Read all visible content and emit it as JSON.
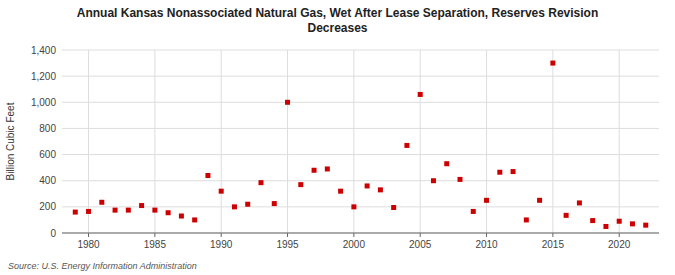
{
  "chart_data": {
    "type": "scatter",
    "title": "Annual Kansas Nonassociated Natural Gas, Wet After Lease Separation, Reserves Revision\nDecreases",
    "ylabel": "Billion Cubic Feet",
    "source": "Source: U.S. Energy Information Administration",
    "x": [
      1979,
      1980,
      1981,
      1982,
      1983,
      1984,
      1985,
      1986,
      1987,
      1988,
      1989,
      1990,
      1991,
      1992,
      1993,
      1994,
      1995,
      1996,
      1997,
      1998,
      1999,
      2000,
      2001,
      2002,
      2003,
      2004,
      2005,
      2006,
      2007,
      2008,
      2009,
      2010,
      2011,
      2012,
      2013,
      2014,
      2015,
      2016,
      2017,
      2018,
      2019,
      2020,
      2021,
      2022
    ],
    "values": [
      160,
      165,
      235,
      175,
      175,
      210,
      175,
      155,
      130,
      100,
      440,
      320,
      200,
      220,
      385,
      225,
      1000,
      370,
      480,
      490,
      320,
      200,
      360,
      330,
      195,
      670,
      1060,
      400,
      530,
      410,
      165,
      250,
      465,
      470,
      100,
      250,
      1300,
      135,
      230,
      95,
      50,
      90,
      70,
      60
    ],
    "color": "#cc0000",
    "marker": "square",
    "xlim": [
      1978,
      2023
    ],
    "ylim": [
      0,
      1400
    ],
    "xticks": [
      1980,
      1985,
      1990,
      1995,
      2000,
      2005,
      2010,
      2015,
      2020
    ],
    "yticks": [
      0,
      200,
      400,
      600,
      800,
      {
        "value": 1000,
        "label": "1,000"
      },
      {
        "value": 1200,
        "label": "1,200"
      },
      {
        "value": 1400,
        "label": "1,400"
      }
    ],
    "grid": true
  }
}
